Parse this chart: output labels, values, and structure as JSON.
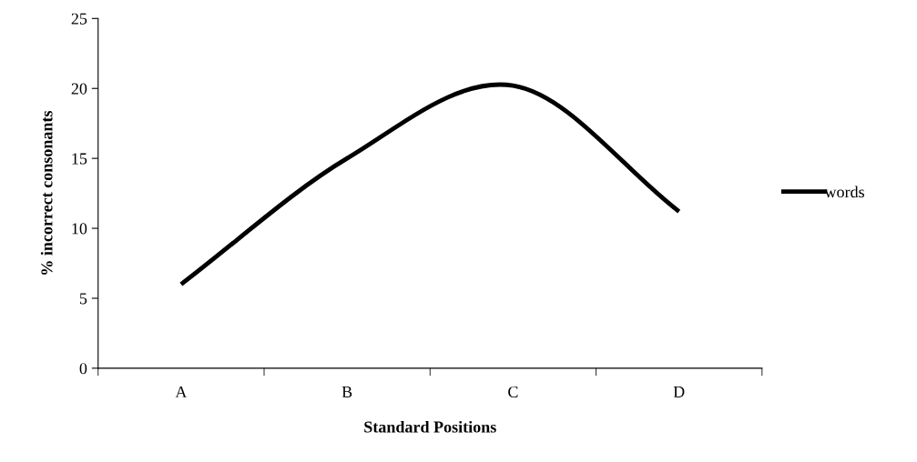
{
  "chart_data": {
    "type": "line",
    "xlabel": "Standard Positions",
    "ylabel": "% incorrect consonants",
    "categories": [
      "A",
      "B",
      "C",
      "D"
    ],
    "series": [
      {
        "name": "words",
        "color": "#000000",
        "values": [
          6,
          15,
          20.2,
          11.2
        ]
      }
    ],
    "ylim": [
      0,
      25
    ],
    "yticks": [
      0,
      5,
      10,
      15,
      20,
      25
    ],
    "grid": false,
    "legend": "right",
    "marker": "none",
    "line_style": "solid"
  }
}
